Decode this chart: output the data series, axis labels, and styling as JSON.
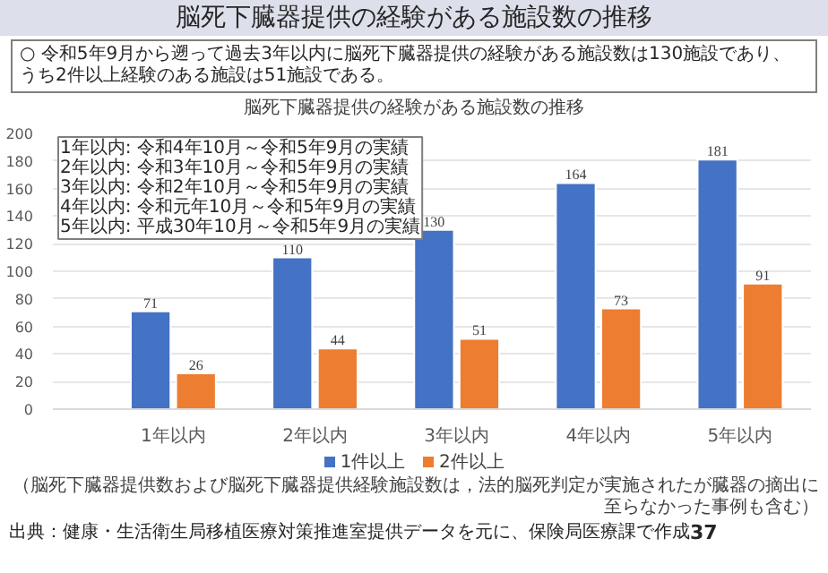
{
  "chart_data": {
    "type": "bar",
    "title": "脳死下臓器提供の経験がある施設数の推移",
    "subtitle": "○ 令和5年9月から遡って過去3年以内に脳死下臓器提供の経験がある施設数は130施設であり、うち2件以上経験のある施設は51施設である。",
    "categories": [
      "1年以内",
      "2年以内",
      "3年以内",
      "4年以内",
      "5年以内"
    ],
    "series": [
      {
        "name": "1件以上",
        "color": "#4472c4",
        "values": [
          71,
          110,
          130,
          164,
          181
        ]
      },
      {
        "name": "2件以上",
        "color": "#ed7d31",
        "values": [
          26,
          44,
          51,
          73,
          91
        ]
      }
    ],
    "ylim": [
      0,
      200
    ],
    "yticks": [
      0,
      20,
      40,
      60,
      80,
      100,
      120,
      140,
      160,
      180,
      200
    ],
    "grid": "y",
    "legend": "bottom",
    "data_labels": true,
    "annotations": [
      "1年以内: 令和4年10月～令和5年9月の実績",
      "2年以内: 令和3年10月～令和5年9月の実績",
      "3年以内: 令和2年10月～令和5年9月の実績",
      "4年以内: 令和元年10月～令和5年9月の実績",
      "5年以内: 平成30年10月～令和5年9月の実績",
      "（脳死下臓器提供数および脳死下臓器提供経験施設数は，法的脳死判定が実施されたが臓器の摘出に至らなかった事例も含む）",
      "出典：健康・生活衛生局移植医療対策推進室提供データを元に、保険局医療課で作成",
      "37"
    ]
  }
}
